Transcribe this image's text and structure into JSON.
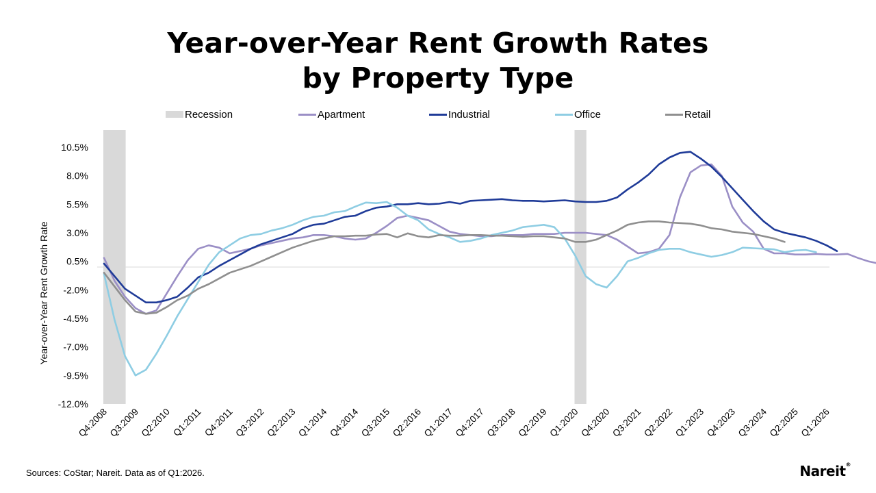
{
  "chart_data": {
    "type": "line",
    "title": [
      "Year-over-Year Rent Growth Rates",
      "by Property Type"
    ],
    "ylabel": "Year-over-Year Rent Growth Rate",
    "ylim": [
      -12,
      12
    ],
    "ytick_values": [
      -12,
      -9.5,
      -7,
      -4.5,
      -2,
      0.5,
      3,
      5.5,
      8,
      10.5
    ],
    "ytick_labels": [
      "-12.0%",
      "-9.5%",
      "-7.0%",
      "-4.5%",
      "-2.0%",
      "0.5%",
      "3.0%",
      "5.5%",
      "8.0%",
      "10.5%"
    ],
    "x_start": "Q4:2008",
    "x_ticks": [
      "Q4:2008",
      "Q3:2009",
      "Q2:2010",
      "Q1:2011",
      "Q4:2011",
      "Q3:2012",
      "Q2:2013",
      "Q1:2014",
      "Q4:2014",
      "Q3:2015",
      "Q2:2016",
      "Q1:2017",
      "Q4:2017",
      "Q3:2018",
      "Q2:2019",
      "Q1:2020",
      "Q4:2020",
      "Q3:2021",
      "Q2:2022",
      "Q1:2023",
      "Q4:2023",
      "Q3:2024",
      "Q2:2025",
      "Q1:2026"
    ],
    "recessions": [
      [
        "Q4:2008",
        "Q2:2009"
      ],
      [
        "Q1:2020",
        "Q2:2020"
      ]
    ],
    "legend_position": "top",
    "series": [
      {
        "name": "Apartment",
        "color": "#9b8fc6",
        "values": [
          0.8,
          -1.2,
          -2.6,
          -3.6,
          -4.1,
          -3.8,
          -2.3,
          -0.8,
          0.6,
          1.6,
          1.9,
          1.7,
          1.2,
          1.4,
          1.6,
          1.9,
          2.1,
          2.3,
          2.5,
          2.6,
          2.8,
          2.8,
          2.7,
          2.5,
          2.4,
          2.5,
          3.0,
          3.6,
          4.3,
          4.5,
          4.3,
          4.1,
          3.6,
          3.1,
          2.9,
          2.8,
          2.7,
          2.7,
          2.8,
          2.8,
          2.8,
          2.9,
          2.9,
          2.9,
          3.0,
          3.0,
          3.0,
          2.9,
          2.8,
          2.4,
          1.8,
          1.2,
          1.3,
          1.6,
          2.8,
          6.1,
          8.3,
          8.9,
          9.0,
          8.0,
          5.3,
          3.9,
          3.1,
          1.6,
          1.2,
          1.2,
          1.1,
          1.1,
          1.15,
          1.1,
          1.1,
          1.15,
          0.8,
          0.5,
          0.3,
          0.2
        ]
      },
      {
        "name": "Industrial",
        "color": "#1f3b98",
        "values": [
          0.3,
          -0.8,
          -1.9,
          -2.5,
          -3.1,
          -3.1,
          -2.9,
          -2.6,
          -1.8,
          -0.9,
          -0.5,
          0.1,
          0.6,
          1.1,
          1.6,
          2.0,
          2.3,
          2.6,
          2.9,
          3.4,
          3.7,
          3.8,
          4.1,
          4.4,
          4.5,
          4.9,
          5.2,
          5.3,
          5.5,
          5.5,
          5.6,
          5.5,
          5.55,
          5.7,
          5.55,
          5.8,
          5.85,
          5.9,
          5.95,
          5.85,
          5.8,
          5.8,
          5.75,
          5.8,
          5.85,
          5.75,
          5.7,
          5.7,
          5.8,
          6.1,
          6.8,
          7.4,
          8.1,
          9.0,
          9.6,
          10.0,
          10.1,
          9.5,
          8.8,
          7.9,
          6.9,
          5.9,
          4.9,
          4.0,
          3.3,
          3.0,
          2.8,
          2.6,
          2.3,
          1.9,
          1.4
        ]
      },
      {
        "name": "Office",
        "color": "#8ecde3",
        "values": [
          -0.6,
          -4.6,
          -7.8,
          -9.5,
          -9.0,
          -7.6,
          -6.0,
          -4.3,
          -2.8,
          -1.3,
          0.2,
          1.3,
          1.9,
          2.5,
          2.8,
          2.9,
          3.2,
          3.4,
          3.7,
          4.1,
          4.4,
          4.5,
          4.8,
          4.9,
          5.3,
          5.65,
          5.6,
          5.7,
          5.2,
          4.5,
          4.1,
          3.3,
          2.9,
          2.6,
          2.2,
          2.3,
          2.5,
          2.8,
          3.0,
          3.2,
          3.5,
          3.6,
          3.7,
          3.5,
          2.5,
          1.0,
          -0.8,
          -1.5,
          -1.8,
          -0.8,
          0.5,
          0.8,
          1.2,
          1.5,
          1.6,
          1.6,
          1.3,
          1.1,
          0.9,
          1.05,
          1.3,
          1.7,
          1.65,
          1.6,
          1.55,
          1.3,
          1.45,
          1.5,
          1.3
        ]
      },
      {
        "name": "Retail",
        "color": "#8f8f8f",
        "values": [
          -0.5,
          -1.7,
          -2.9,
          -3.9,
          -4.1,
          -4.0,
          -3.5,
          -2.9,
          -2.5,
          -1.9,
          -1.5,
          -1.0,
          -0.5,
          -0.2,
          0.1,
          0.5,
          0.9,
          1.3,
          1.7,
          2.0,
          2.3,
          2.5,
          2.7,
          2.7,
          2.75,
          2.75,
          2.85,
          2.9,
          2.6,
          2.95,
          2.7,
          2.6,
          2.8,
          2.75,
          2.75,
          2.8,
          2.8,
          2.75,
          2.75,
          2.7,
          2.65,
          2.7,
          2.7,
          2.6,
          2.5,
          2.2,
          2.2,
          2.4,
          2.8,
          3.2,
          3.7,
          3.9,
          4.0,
          4.0,
          3.9,
          3.85,
          3.8,
          3.65,
          3.4,
          3.3,
          3.1,
          3.0,
          2.9,
          2.7,
          2.5,
          2.2
        ]
      }
    ]
  },
  "footer": {
    "source": "Sources: CoStar; Nareit. Data as of Q1:2026.",
    "logo": "Nareit",
    "logo_mark": "®"
  },
  "legend": {
    "recession_label": "Recession",
    "recession_color": "#d9d9d9"
  }
}
